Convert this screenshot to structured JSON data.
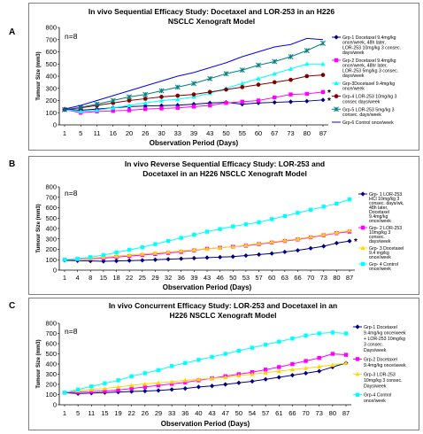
{
  "panels": [
    {
      "letter": "A",
      "chart_data": {
        "type": "line",
        "title": "In vivo Sequential Efficacy Study: Docetaxel and LOR-253 in an H226 NSCLC Xenograft Model",
        "title_lines": [
          "In vivo Sequential Efficacy Study: Docetaxel and LOR-253 in an H226",
          "NSCLC Xenograft Model"
        ],
        "annotation": "n=8",
        "xlabel": "Observation Period (Days)",
        "ylabel": "Tumour Size (mm3)",
        "ylim": [
          0,
          800
        ],
        "yticks": [
          0,
          100,
          200,
          300,
          400,
          500,
          600,
          700,
          800
        ],
        "x": [
          1,
          5,
          11,
          16,
          20,
          26,
          30,
          33,
          39,
          43,
          50,
          55,
          60,
          67,
          73,
          80,
          87
        ],
        "grid": false,
        "legend_position": "right",
        "series": [
          {
            "name": "Grp-1 Docetaxel 9.4mg/kg once/week, 48h later, LOR-253 10mg/kg 3 consec. days/week",
            "color": "#000080",
            "marker": "diamond",
            "values": [
              130,
              120,
              130,
              140,
              150,
              155,
              158,
              162,
              170,
              180,
              185,
              170,
              180,
              185,
              190,
              195,
              205
            ],
            "end_marker": "*"
          },
          {
            "name": "Grp-2 Docetaxel 9.4mg/kg once/week, 48hr later, LOR-253 5mg/kg 3 consec. days/week",
            "color": "#ff00ff",
            "marker": "square",
            "values": [
              125,
              100,
              110,
              115,
              120,
              130,
              135,
              140,
              150,
              160,
              180,
              190,
              200,
              225,
              250,
              255,
              270
            ],
            "end_marker": "*"
          },
          {
            "name": "Grp-3Docetaxel 9.4mg/kg once/week",
            "color": "#00ffff",
            "marker": "triangle",
            "values": [
              125,
              110,
              120,
              140,
              160,
              180,
              200,
              210,
              230,
              260,
              300,
              340,
              380,
              420,
              460,
              500,
              500
            ]
          },
          {
            "name": "Grp-4 LOR-253 10mg/kg 3 consec days/week",
            "color": "#800000",
            "marker": "circle",
            "values": [
              125,
              140,
              160,
              180,
              200,
              215,
              230,
              240,
              250,
              270,
              290,
              310,
              330,
              350,
              370,
              400,
              410
            ]
          },
          {
            "name": "Grp-5 LOR-253 5mg/kg 3 consec. days/week",
            "color": "#008080",
            "marker": "star",
            "values": [
              125,
              145,
              170,
              200,
              230,
              250,
              280,
              310,
              340,
              380,
              420,
              450,
              490,
              520,
              560,
              610,
              670
            ]
          },
          {
            "name": "Grp-6 Control once/week",
            "color": "#0000ff",
            "marker": "none",
            "values": [
              130,
              160,
              200,
              240,
              280,
              320,
              360,
              400,
              430,
              470,
              510,
              560,
              600,
              640,
              660,
              710,
              700
            ]
          }
        ]
      }
    },
    {
      "letter": "B",
      "chart_data": {
        "type": "line",
        "title": "In vivo Reverse Sequential Efficacy Study: LOR-253 and Docetaxel in an H226 NSCLC Xenograft Model",
        "title_lines": [
          "In vivo Reverse Sequential Efficacy Study: LOR-253 and",
          "Docetaxel in an H226 NSCLC Xenograft Model"
        ],
        "annotation": "n=8",
        "xlabel": "Observation Period (Days)",
        "ylabel": "Tumour Size (mm3)",
        "ylim": [
          0,
          800
        ],
        "yticks": [
          0,
          100,
          200,
          300,
          400,
          500,
          600,
          700,
          800
        ],
        "x": [
          1,
          4,
          8,
          15,
          18,
          22,
          25,
          29,
          32,
          36,
          39,
          43,
          46,
          50,
          53,
          57,
          60,
          63,
          66,
          70,
          73,
          80,
          87
        ],
        "grid": false,
        "legend_position": "right",
        "series": [
          {
            "name": "Grp- 1 LOR-253 HCl 10mg/kg 3 consec. days/wk, 48h later, Docetaxel 9.4mg/kg once/week",
            "color": "#000080",
            "marker": "diamond",
            "values": [
              95,
              90,
              88,
              85,
              88,
              92,
              95,
              100,
              105,
              110,
              115,
              120,
              125,
              130,
              140,
              150,
              160,
              175,
              190,
              210,
              230,
              260,
              280
            ],
            "end_marker": "*"
          },
          {
            "name": "Grp- 2 LOR-253 10mg/kg 3 consec. days/week",
            "color": "#ff00ff",
            "marker": "square",
            "values": [
              100,
              105,
              110,
              115,
              125,
              135,
              145,
              155,
              165,
              175,
              190,
              205,
              215,
              225,
              235,
              250,
              265,
              280,
              295,
              315,
              335,
              355,
              370
            ]
          },
          {
            "name": "Grp- 3 Docetaxel 9.4 mg/kg once/week",
            "color": "#ffd700",
            "marker": "triangle",
            "values": [
              100,
              108,
              115,
              125,
              135,
              145,
              155,
              165,
              175,
              185,
              195,
              205,
              215,
              225,
              240,
              255,
              270,
              285,
              300,
              320,
              340,
              360,
              380
            ]
          },
          {
            "name": "Grp- 4 Control once/week",
            "color": "#00ffff",
            "marker": "square",
            "values": [
              100,
              110,
              125,
              145,
              170,
              195,
              220,
              250,
              280,
              310,
              340,
              370,
              395,
              420,
              440,
              460,
              490,
              520,
              550,
              580,
              610,
              640,
              680
            ]
          }
        ]
      }
    },
    {
      "letter": "C",
      "chart_data": {
        "type": "line",
        "title": "In vivo Concurrent Efficacy Study: LOR-253 and Docetaxel in an H226 NSCLC Xenograft Model",
        "title_lines": [
          "In vivo Concurrent Efficacy Study: LOR-253 and Docetaxel in an",
          "H226 NSCLC Xenograft Model"
        ],
        "annotation": "n=8",
        "xlabel": "Observation Period (Days)",
        "ylabel": "Tumour Size (mm3)",
        "ylim": [
          0,
          800
        ],
        "yticks": [
          0,
          100,
          200,
          300,
          400,
          500,
          600,
          700,
          800
        ],
        "x": [
          1,
          5,
          11,
          15,
          19,
          22,
          26,
          29,
          33,
          36,
          40,
          43,
          47,
          50,
          54,
          57,
          61,
          66,
          70,
          73,
          80,
          87
        ],
        "grid": false,
        "legend_position": "right",
        "series": [
          {
            "name": "Grp-1 Docetaxel 9.4mg/kg once/week + LOR-253 10mg/kg 3 consec. Days/week",
            "color": "#000080",
            "marker": "diamond",
            "values": [
              120,
              110,
              115,
              120,
              125,
              130,
              135,
              140,
              150,
              160,
              175,
              185,
              200,
              215,
              230,
              250,
              270,
              290,
              310,
              330,
              370,
              410
            ]
          },
          {
            "name": "Grp-2 Docetaxel 9.4mg/kg once/week",
            "color": "#ff00ff",
            "marker": "square",
            "values": [
              120,
              125,
              130,
              135,
              145,
              160,
              175,
              190,
              205,
              220,
              240,
              260,
              280,
              300,
              320,
              345,
              370,
              400,
              430,
              460,
              500,
              490
            ]
          },
          {
            "name": "Grp-3 LOR-253 10mg/kg 3 consec. Days/week",
            "color": "#ffd700",
            "marker": "triangle",
            "values": [
              120,
              140,
              150,
              160,
              175,
              190,
              205,
              215,
              225,
              240,
              250,
              260,
              270,
              285,
              300,
              315,
              330,
              345,
              360,
              375,
              390,
              410
            ]
          },
          {
            "name": "Grp-4 Control once/week",
            "color": "#00ffff",
            "marker": "square",
            "values": [
              120,
              150,
              180,
              210,
              240,
              280,
              310,
              340,
              380,
              410,
              440,
              470,
              500,
              530,
              560,
              590,
              620,
              650,
              680,
              700,
              710,
              700
            ]
          }
        ]
      }
    }
  ]
}
